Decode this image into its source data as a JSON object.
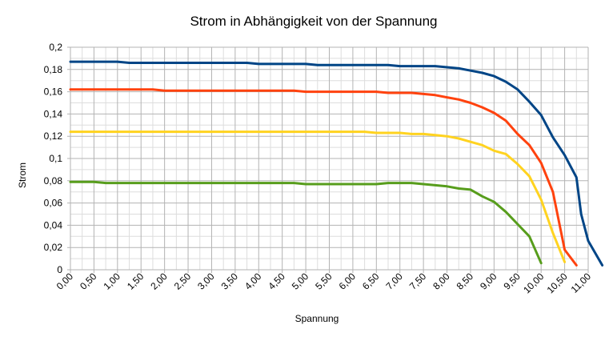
{
  "chart_data": {
    "type": "line",
    "title": "Strom in Abhängigkeit von der Spannung",
    "xlabel": "Spannung",
    "ylabel": "Strom",
    "xlim": [
      0,
      11
    ],
    "ylim": [
      0,
      0.2
    ],
    "grid": true,
    "legend": "none",
    "x_tick_labels": [
      "0,00",
      "0,50",
      "1,00",
      "1,50",
      "2,00",
      "2,50",
      "3,00",
      "3,50",
      "4,00",
      "4,50",
      "5,00",
      "5,50",
      "6,00",
      "6,50",
      "7,00",
      "7,50",
      "8,00",
      "8,50",
      "9,00",
      "9,50",
      "10,00",
      "10,50",
      "11,00"
    ],
    "x_ticks": [
      0,
      0.5,
      1,
      1.5,
      2,
      2.5,
      3,
      3.5,
      4,
      4.5,
      5,
      5.5,
      6,
      6.5,
      7,
      7.5,
      8,
      8.5,
      9,
      9.5,
      10,
      10.5,
      11
    ],
    "y_tick_labels": [
      "0",
      "0,02",
      "0,04",
      "0,06",
      "0,08",
      "0,1",
      "0,12",
      "0,14",
      "0,16",
      "0,18",
      "0,2"
    ],
    "y_ticks": [
      0,
      0.02,
      0.04,
      0.06,
      0.08,
      0.1,
      0.12,
      0.14,
      0.16,
      0.18,
      0.2
    ],
    "series": [
      {
        "color": "#004586",
        "points": [
          [
            0,
            0.187
          ],
          [
            1,
            0.187
          ],
          [
            1.25,
            0.186
          ],
          [
            2,
            0.186
          ],
          [
            3,
            0.186
          ],
          [
            3.75,
            0.186
          ],
          [
            4,
            0.185
          ],
          [
            5,
            0.185
          ],
          [
            5.25,
            0.184
          ],
          [
            6,
            0.184
          ],
          [
            6.75,
            0.184
          ],
          [
            7,
            0.183
          ],
          [
            7.75,
            0.183
          ],
          [
            8,
            0.182
          ],
          [
            8.25,
            0.181
          ],
          [
            8.5,
            0.179
          ],
          [
            8.75,
            0.177
          ],
          [
            9,
            0.174
          ],
          [
            9.25,
            0.169
          ],
          [
            9.5,
            0.162
          ],
          [
            9.75,
            0.151
          ],
          [
            10,
            0.139
          ],
          [
            10.25,
            0.119
          ],
          [
            10.5,
            0.103
          ],
          [
            10.75,
            0.083
          ],
          [
            10.85,
            0.05
          ],
          [
            11,
            0.026
          ],
          [
            11.3,
            0.004
          ]
        ]
      },
      {
        "color": "#ff420e",
        "points": [
          [
            0,
            0.162
          ],
          [
            1,
            0.162
          ],
          [
            1.75,
            0.162
          ],
          [
            2,
            0.161
          ],
          [
            3,
            0.161
          ],
          [
            4,
            0.161
          ],
          [
            4.75,
            0.161
          ],
          [
            5,
            0.16
          ],
          [
            6,
            0.16
          ],
          [
            6.5,
            0.16
          ],
          [
            6.75,
            0.159
          ],
          [
            7.25,
            0.159
          ],
          [
            7.5,
            0.158
          ],
          [
            7.75,
            0.157
          ],
          [
            8,
            0.155
          ],
          [
            8.25,
            0.153
          ],
          [
            8.5,
            0.15
          ],
          [
            8.75,
            0.146
          ],
          [
            9,
            0.141
          ],
          [
            9.25,
            0.134
          ],
          [
            9.5,
            0.122
          ],
          [
            9.75,
            0.112
          ],
          [
            10,
            0.096
          ],
          [
            10.25,
            0.07
          ],
          [
            10.5,
            0.018
          ],
          [
            10.75,
            0.004
          ]
        ]
      },
      {
        "color": "#ffd320",
        "points": [
          [
            0,
            0.124
          ],
          [
            1,
            0.124
          ],
          [
            2,
            0.124
          ],
          [
            3,
            0.124
          ],
          [
            4,
            0.124
          ],
          [
            5,
            0.124
          ],
          [
            6,
            0.124
          ],
          [
            6.25,
            0.124
          ],
          [
            6.5,
            0.123
          ],
          [
            7,
            0.123
          ],
          [
            7.25,
            0.122
          ],
          [
            7.5,
            0.122
          ],
          [
            7.75,
            0.121
          ],
          [
            8,
            0.12
          ],
          [
            8.25,
            0.118
          ],
          [
            8.5,
            0.115
          ],
          [
            8.75,
            0.112
          ],
          [
            9,
            0.107
          ],
          [
            9.25,
            0.104
          ],
          [
            9.5,
            0.095
          ],
          [
            9.75,
            0.084
          ],
          [
            10,
            0.063
          ],
          [
            10.25,
            0.033
          ],
          [
            10.5,
            0.007
          ]
        ]
      },
      {
        "color": "#579d1c",
        "points": [
          [
            0,
            0.079
          ],
          [
            0.5,
            0.079
          ],
          [
            0.75,
            0.078
          ],
          [
            1,
            0.078
          ],
          [
            2,
            0.078
          ],
          [
            3,
            0.078
          ],
          [
            4,
            0.078
          ],
          [
            4.75,
            0.078
          ],
          [
            5,
            0.077
          ],
          [
            6,
            0.077
          ],
          [
            6.5,
            0.077
          ],
          [
            6.75,
            0.078
          ],
          [
            7.25,
            0.078
          ],
          [
            7.5,
            0.077
          ],
          [
            7.75,
            0.076
          ],
          [
            8,
            0.075
          ],
          [
            8.25,
            0.073
          ],
          [
            8.5,
            0.072
          ],
          [
            8.75,
            0.066
          ],
          [
            9,
            0.061
          ],
          [
            9.25,
            0.052
          ],
          [
            9.5,
            0.041
          ],
          [
            9.75,
            0.03
          ],
          [
            10,
            0.006
          ]
        ]
      }
    ]
  }
}
